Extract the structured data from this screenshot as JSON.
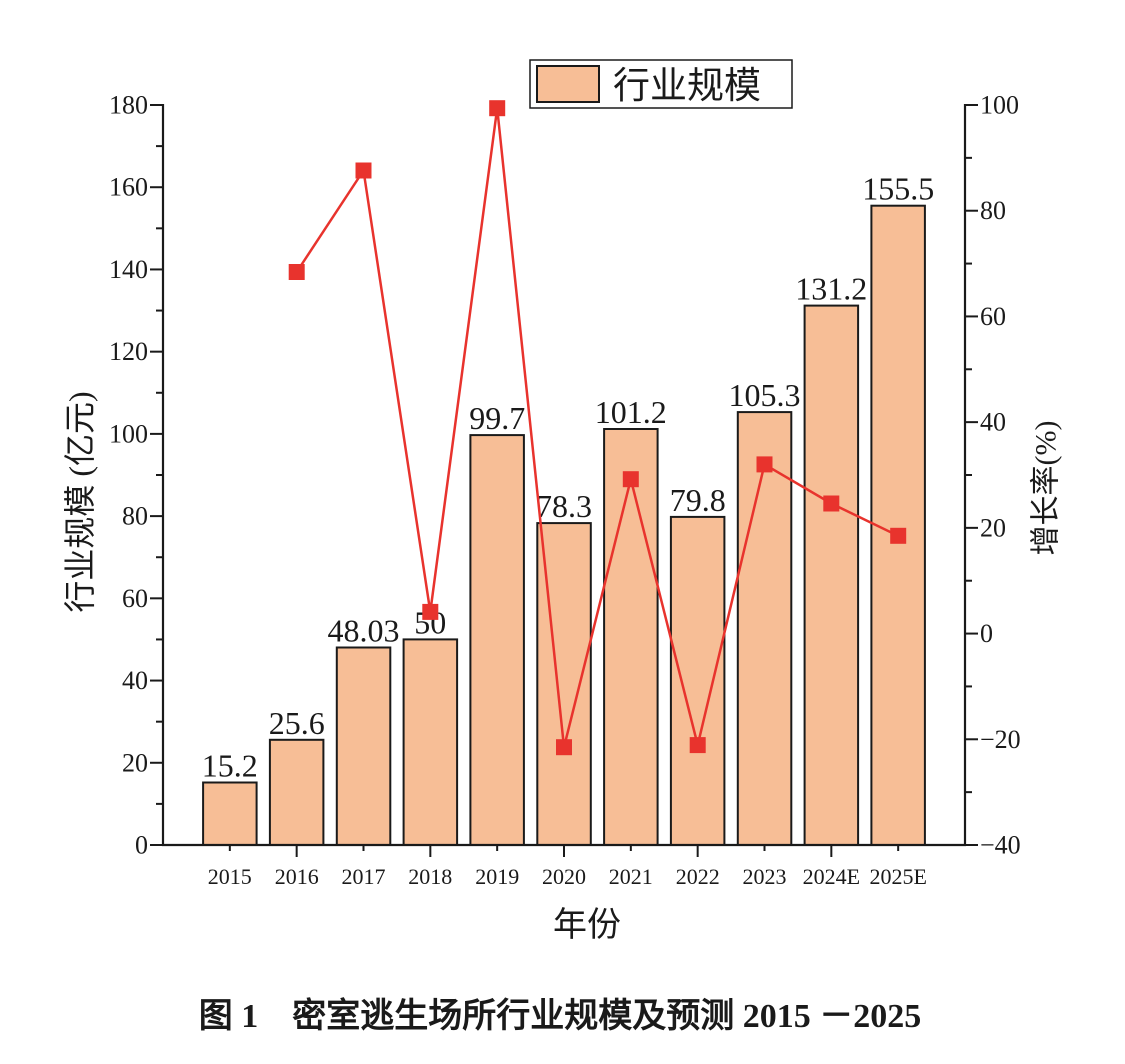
{
  "chart_data": {
    "type": "bar",
    "categories": [
      "2015",
      "2016",
      "2017",
      "2018",
      "2019",
      "2020",
      "2021",
      "2022",
      "2023",
      "2024E",
      "2025E"
    ],
    "series": [
      {
        "name": "行业规模",
        "type": "bar",
        "axis": "left",
        "data_labels": true,
        "values": [
          15.2,
          25.6,
          48.03,
          50,
          99.7,
          78.3,
          101.2,
          79.8,
          105.3,
          131.2,
          155.5
        ]
      },
      {
        "type": "line",
        "axis": "right",
        "values": [
          null,
          68.4,
          87.6,
          4.1,
          99.4,
          -21.5,
          29.2,
          -21.1,
          32,
          24.6,
          18.5
        ]
      }
    ],
    "xlabel": "年份",
    "ylabel": "行业规模 (亿元)",
    "y2label": "增长率(%)",
    "ylim": [
      0,
      180
    ],
    "y2lim": [
      -40,
      100
    ],
    "yticks": [
      0,
      20,
      40,
      60,
      80,
      100,
      120,
      140,
      160,
      180
    ],
    "y2ticks": [
      -40,
      -20,
      0,
      20,
      40,
      60,
      80,
      100
    ],
    "y2tick_labels": [
      "−40",
      "−20",
      "0",
      "20",
      "40",
      "60",
      "80",
      "100"
    ],
    "minor_tick_step": 10,
    "grid": false,
    "legend": "top-center"
  },
  "caption": "图 1　密室逃生场所行业规模及预测 2015 －2025",
  "colors": {
    "bar_fill": "#F7BE96",
    "bar_edge": "#1A1A1A",
    "line": "#E8332D",
    "axis": "#1A1A1A"
  }
}
